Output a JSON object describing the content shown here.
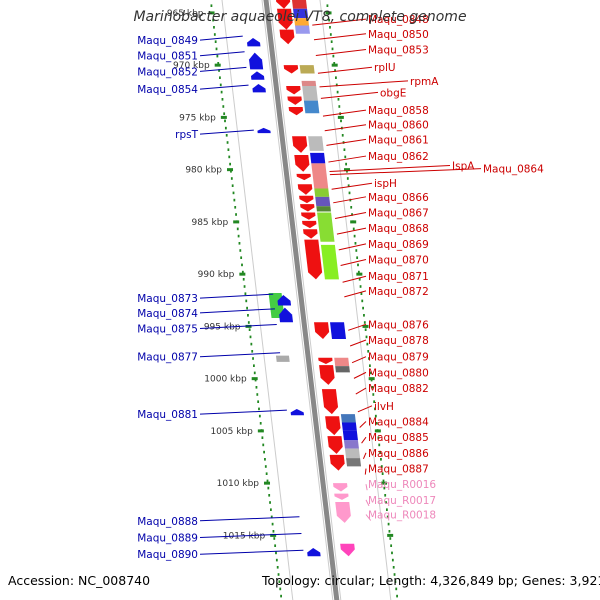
{
  "title": "Marinobacter aquaeolei VT8, complete genome",
  "footer": {
    "accession": "Accession: NC_008740",
    "summary": "Topology: circular; Length: 4,326,849 bp; Genes: 3,921"
  },
  "colors": {
    "forward_label": "#cc0000",
    "reverse_label": "#0000aa",
    "rna_label": "#ee88bb",
    "ruler_tick": "#228822",
    "backbone": "#888888",
    "strand_box": "#cccccc"
  },
  "chart_data": {
    "type": "genome-map",
    "kbp_range": [
      963,
      1017
    ],
    "kbp_ticks": [
      {
        "kbp": 965,
        "label": "965 kbp"
      },
      {
        "kbp": 970,
        "label": "970 kbp"
      },
      {
        "kbp": 975,
        "label": "975 kbp"
      },
      {
        "kbp": 980,
        "label": "980 kbp"
      },
      {
        "kbp": 985,
        "label": "985 kbp"
      },
      {
        "kbp": 990,
        "label": "990 kbp"
      },
      {
        "kbp": 995,
        "label": "995 kbp"
      },
      {
        "kbp": 1000,
        "label": "1000 kbp"
      },
      {
        "kbp": 1005,
        "label": "1005 kbp"
      },
      {
        "kbp": 1010,
        "label": "1010 kbp"
      },
      {
        "kbp": 1015,
        "label": "1015 kbp"
      }
    ],
    "reverse_labels": [
      {
        "text": "Maqu_0849",
        "kbp": 967.6
      },
      {
        "text": "Maqu_0851",
        "kbp": 969.1
      },
      {
        "text": "Maqu_0852",
        "kbp": 970.6
      },
      {
        "text": "Maqu_0854",
        "kbp": 972.3
      },
      {
        "text": "rpsT",
        "kbp": 976.6
      },
      {
        "text": "Maqu_0873",
        "kbp": 992.3
      },
      {
        "text": "Maqu_0874",
        "kbp": 993.7
      },
      {
        "text": "Maqu_0875",
        "kbp": 995.2
      },
      {
        "text": "Maqu_0877",
        "kbp": 997.9
      },
      {
        "text": "Maqu_0881",
        "kbp": 1003.4
      },
      {
        "text": "Maqu_0888",
        "kbp": 1013.6
      },
      {
        "text": "Maqu_0889",
        "kbp": 1015.2
      },
      {
        "text": "Maqu_0890",
        "kbp": 1016.8
      }
    ],
    "forward_labels": [
      {
        "text": "Maqu_0848",
        "kbp": 965.6
      },
      {
        "text": "Maqu_0850",
        "kbp": 967.0
      },
      {
        "text": "Maqu_0853",
        "kbp": 968.5
      },
      {
        "text": "rplU",
        "kbp": 970.2
      },
      {
        "text": "rpmA",
        "kbp": 971.5
      },
      {
        "text": "obgE",
        "kbp": 972.6
      },
      {
        "text": "Maqu_0858",
        "kbp": 974.3
      },
      {
        "text": "Maqu_0860",
        "kbp": 975.7
      },
      {
        "text": "Maqu_0861",
        "kbp": 977.1
      },
      {
        "text": "Maqu_0862",
        "kbp": 978.7
      },
      {
        "text": "IspA",
        "kbp": 979.6
      },
      {
        "text": "Maqu_0864",
        "kbp": 979.9
      },
      {
        "text": "ispH",
        "kbp": 981.3
      },
      {
        "text": "Maqu_0866",
        "kbp": 982.6
      },
      {
        "text": "Maqu_0867",
        "kbp": 984.1
      },
      {
        "text": "Maqu_0868",
        "kbp": 985.6
      },
      {
        "text": "Maqu_0869",
        "kbp": 987.1
      },
      {
        "text": "Maqu_0870",
        "kbp": 988.6
      },
      {
        "text": "Maqu_0871",
        "kbp": 990.2
      },
      {
        "text": "Maqu_0872",
        "kbp": 991.6
      },
      {
        "text": "Maqu_0876",
        "kbp": 994.8
      },
      {
        "text": "Maqu_0878",
        "kbp": 996.3
      },
      {
        "text": "Maqu_0879",
        "kbp": 997.9
      },
      {
        "text": "Maqu_0880",
        "kbp": 999.4
      },
      {
        "text": "Maqu_0882",
        "kbp": 1000.9
      },
      {
        "text": "ilvH",
        "kbp": 1002.6
      },
      {
        "text": "Maqu_0884",
        "kbp": 1004.1
      },
      {
        "text": "Maqu_0885",
        "kbp": 1005.6
      },
      {
        "text": "Maqu_0886",
        "kbp": 1007.1
      },
      {
        "text": "Maqu_0887",
        "kbp": 1008.6
      }
    ],
    "rna_labels": [
      {
        "text": "Maqu_R0016",
        "kbp": 1010.1
      },
      {
        "text": "Maqu_R0017",
        "kbp": 1011.6
      },
      {
        "text": "Maqu_R0018",
        "kbp": 1013.0
      }
    ],
    "forward_genes": [
      {
        "start": 963.0,
        "end": 964.6,
        "color": "#ee1111"
      },
      {
        "start": 964.6,
        "end": 966.6,
        "color": "#ee1111"
      },
      {
        "start": 966.6,
        "end": 968.0,
        "color": "#ee1111"
      },
      {
        "start": 970.0,
        "end": 970.8,
        "color": "#ee1111"
      },
      {
        "start": 972.0,
        "end": 972.8,
        "color": "#ee1111"
      },
      {
        "start": 973.0,
        "end": 973.8,
        "color": "#ee1111"
      },
      {
        "start": 974.0,
        "end": 974.8,
        "color": "#ee1111"
      },
      {
        "start": 976.8,
        "end": 978.4,
        "color": "#ee1111"
      },
      {
        "start": 978.6,
        "end": 980.2,
        "color": "#ee1111"
      },
      {
        "start": 980.4,
        "end": 981.0,
        "color": "#ee1111"
      },
      {
        "start": 981.4,
        "end": 982.4,
        "color": "#ee1111"
      },
      {
        "start": 982.5,
        "end": 983.2,
        "color": "#ee1111"
      },
      {
        "start": 983.3,
        "end": 984.0,
        "color": "#ee1111"
      },
      {
        "start": 984.1,
        "end": 984.8,
        "color": "#ee1111"
      },
      {
        "start": 984.9,
        "end": 985.6,
        "color": "#ee1111"
      },
      {
        "start": 985.7,
        "end": 986.6,
        "color": "#ee1111"
      },
      {
        "start": 986.7,
        "end": 990.5,
        "color": "#ee1111"
      },
      {
        "start": 994.6,
        "end": 996.2,
        "color": "#ee1111"
      },
      {
        "start": 998.0,
        "end": 998.6,
        "color": "#ee1111"
      },
      {
        "start": 998.7,
        "end": 1000.6,
        "color": "#ee1111"
      },
      {
        "start": 1001.0,
        "end": 1003.4,
        "color": "#ee1111"
      },
      {
        "start": 1003.6,
        "end": 1005.4,
        "color": "#ee1111"
      },
      {
        "start": 1005.5,
        "end": 1007.2,
        "color": "#ee1111"
      },
      {
        "start": 1007.3,
        "end": 1008.8,
        "color": "#ee1111"
      },
      {
        "start": 1010.0,
        "end": 1010.8,
        "color": "#ff99cc"
      },
      {
        "start": 1011.0,
        "end": 1011.6,
        "color": "#ff99cc"
      },
      {
        "start": 1011.8,
        "end": 1013.8,
        "color": "#ff99cc"
      },
      {
        "start": 1015.8,
        "end": 1017.0,
        "color": "#ff44bb"
      }
    ],
    "reverse_genes": [
      {
        "start": 967.4,
        "end": 968.2,
        "color": "#1111dd"
      },
      {
        "start": 968.8,
        "end": 970.4,
        "color": "#1111dd"
      },
      {
        "start": 970.6,
        "end": 971.4,
        "color": "#1111dd"
      },
      {
        "start": 971.8,
        "end": 972.6,
        "color": "#1111dd"
      },
      {
        "start": 976.0,
        "end": 976.5,
        "color": "#1111dd"
      },
      {
        "start": 992.0,
        "end": 993.0,
        "color": "#1111dd"
      },
      {
        "start": 993.2,
        "end": 994.6,
        "color": "#1111dd"
      },
      {
        "start": 1002.9,
        "end": 1003.5,
        "color": "#1111dd"
      },
      {
        "start": 1016.2,
        "end": 1017.0,
        "color": "#1111dd"
      }
    ],
    "forward_func_boxes": [
      {
        "start": 963.0,
        "end": 963.7,
        "color": "#ee7744"
      },
      {
        "start": 963.7,
        "end": 964.6,
        "color": "#dd3333"
      },
      {
        "start": 964.6,
        "end": 965.5,
        "color": "#3333dd"
      },
      {
        "start": 965.5,
        "end": 966.2,
        "color": "#ffaa33"
      },
      {
        "start": 966.2,
        "end": 967.0,
        "color": "#9999ee"
      },
      {
        "start": 970.0,
        "end": 970.8,
        "color": "#bbaa55"
      },
      {
        "start": 971.5,
        "end": 972.0,
        "color": "#dd8888"
      },
      {
        "start": 972.0,
        "end": 973.4,
        "color": "#bbbbbb"
      },
      {
        "start": 973.4,
        "end": 974.6,
        "color": "#4488cc"
      },
      {
        "start": 976.8,
        "end": 978.2,
        "color": "#bbbbbb"
      },
      {
        "start": 978.4,
        "end": 979.4,
        "color": "#1111dd"
      },
      {
        "start": 979.4,
        "end": 981.8,
        "color": "#ee8888"
      },
      {
        "start": 981.8,
        "end": 982.6,
        "color": "#88cc33"
      },
      {
        "start": 982.6,
        "end": 983.5,
        "color": "#6655bb"
      },
      {
        "start": 983.5,
        "end": 984.0,
        "color": "#558833"
      },
      {
        "start": 984.1,
        "end": 986.9,
        "color": "#88dd33"
      },
      {
        "start": 987.2,
        "end": 990.5,
        "color": "#88ee22"
      },
      {
        "start": 994.6,
        "end": 996.2,
        "color": "#1111dd"
      },
      {
        "start": 998.0,
        "end": 998.8,
        "color": "#ee8888"
      },
      {
        "start": 998.8,
        "end": 999.4,
        "color": "#666666"
      },
      {
        "start": 1003.4,
        "end": 1004.2,
        "color": "#4477bb"
      },
      {
        "start": 1004.2,
        "end": 1005.0,
        "color": "#1111dd"
      },
      {
        "start": 1005.0,
        "end": 1005.9,
        "color": "#1111dd"
      },
      {
        "start": 1005.9,
        "end": 1006.7,
        "color": "#8877cc"
      },
      {
        "start": 1006.7,
        "end": 1007.6,
        "color": "#bbbbbb"
      },
      {
        "start": 1007.6,
        "end": 1008.4,
        "color": "#777777"
      }
    ],
    "reverse_func_boxes": [
      {
        "start": 991.8,
        "end": 994.2,
        "color": "#44cc44"
      },
      {
        "start": 997.8,
        "end": 998.4,
        "color": "#aaaaaa"
      }
    ]
  }
}
